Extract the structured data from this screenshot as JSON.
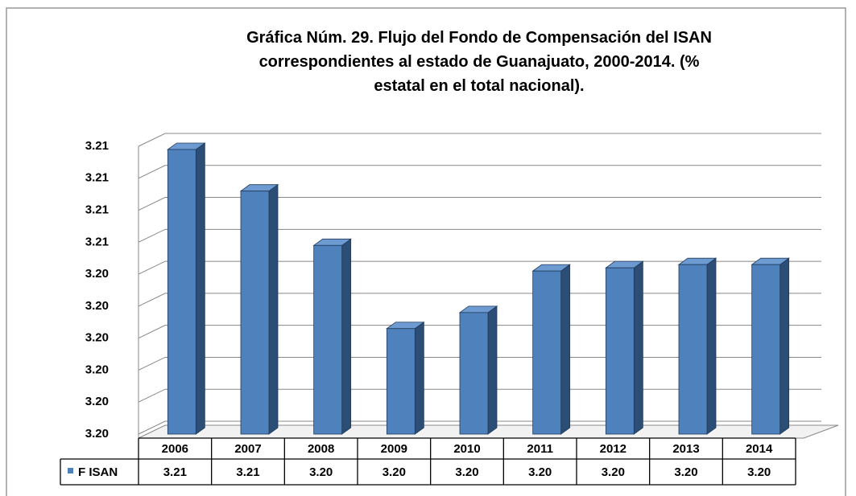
{
  "chart_data": {
    "type": "bar3d",
    "title": "Gráfica Núm. 29. Flujo del Fondo de Compensación del ISAN correspondientes al estado de Guanajuato, 2000-2014. (% estatal en el total nacional).",
    "categories": [
      "2006",
      "2007",
      "2008",
      "2009",
      "2010",
      "2011",
      "2012",
      "2013",
      "2014"
    ],
    "series": [
      {
        "name": "F ISAN",
        "color": "#4f81bd",
        "values": [
          3.2079,
          3.2066,
          3.2049,
          3.2023,
          3.2028,
          3.2041,
          3.2042,
          3.2043,
          3.2043
        ],
        "value_labels": [
          "3.21",
          "3.21",
          "3.20",
          "3.20",
          "3.20",
          "3.20",
          "3.20",
          "3.20",
          "3.20"
        ]
      }
    ],
    "ylim": [
      3.199,
      3.208
    ],
    "yticks": [
      {
        "value": 3.199,
        "label": "3.20"
      },
      {
        "value": 3.2,
        "label": "3.20"
      },
      {
        "value": 3.201,
        "label": "3.20"
      },
      {
        "value": 3.202,
        "label": "3.20"
      },
      {
        "value": 3.203,
        "label": "3.20"
      },
      {
        "value": 3.204,
        "label": "3.20"
      },
      {
        "value": 3.205,
        "label": "3.21"
      },
      {
        "value": 3.206,
        "label": "3.21"
      },
      {
        "value": 3.207,
        "label": "3.21"
      },
      {
        "value": 3.208,
        "label": "3.21"
      }
    ],
    "grid": true,
    "legend": "table"
  }
}
